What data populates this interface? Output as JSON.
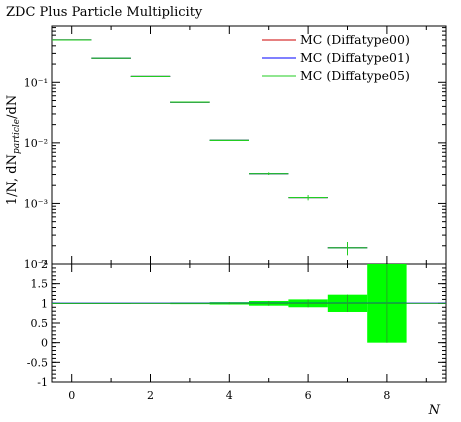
{
  "chart_data": {
    "type": "line",
    "title": "ZDC Plus Particle Multiplicity",
    "xlabel": "N",
    "ylabel": "1/N, dN_particle/dN",
    "ylabel_sub": "particle",
    "yscale": "log",
    "xlim": [
      -0.5,
      9.5
    ],
    "ylim": [
      0.0001,
      0.85
    ],
    "ratio_ylim": [
      -1,
      2
    ],
    "x_ticks": [
      "0",
      "2",
      "4",
      "6",
      "8"
    ],
    "y_ticks": [
      "10⁻¹",
      "10⁻²",
      "10⁻³",
      "10⁻⁴"
    ],
    "ratio_ticks": [
      "2",
      "1.5",
      "1",
      "0.5",
      "0",
      "-0.5",
      "-1"
    ],
    "legend_position": "top-right",
    "series": [
      {
        "name": "MC (Diffatype00)",
        "color": "#cc0000",
        "x": [
          0,
          1,
          2,
          3,
          4,
          5,
          6,
          7
        ],
        "y": [
          0.5,
          0.25,
          0.125,
          0.047,
          0.011,
          0.0031,
          0.00125,
          0.000185
        ]
      },
      {
        "name": "MC (Diffatype01)",
        "color": "#0000ff",
        "x": [
          0,
          1,
          2,
          3,
          4,
          5,
          6,
          7
        ],
        "y": [
          0.5,
          0.25,
          0.125,
          0.047,
          0.011,
          0.0031,
          0.00125,
          0.000185
        ]
      },
      {
        "name": "MC (Diffatype05)",
        "color": "#22cc22",
        "x": [
          0,
          1,
          2,
          3,
          4,
          5,
          6,
          7
        ],
        "y": [
          0.5,
          0.25,
          0.125,
          0.047,
          0.011,
          0.0031,
          0.00125,
          0.000185
        ]
      }
    ],
    "ratio_band": {
      "x": [
        0,
        1,
        2,
        3,
        4,
        5,
        6,
        7,
        8
      ],
      "lo": [
        1.0,
        1.0,
        0.99,
        0.98,
        0.97,
        0.94,
        0.9,
        0.78,
        0.0
      ],
      "hi": [
        1.0,
        1.0,
        1.01,
        1.02,
        1.03,
        1.06,
        1.1,
        1.22,
        2.0
      ]
    }
  }
}
